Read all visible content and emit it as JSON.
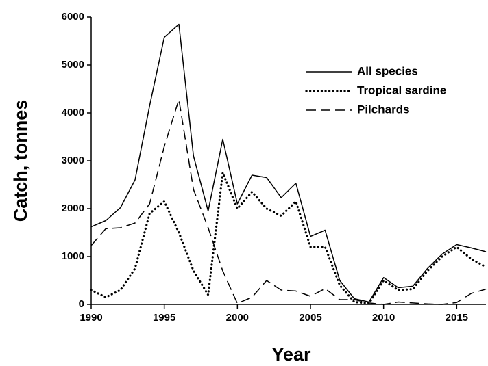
{
  "chart_data": {
    "type": "line",
    "xlabel": "Year",
    "ylabel": "Catch, tonnes",
    "x": [
      1990,
      1991,
      1992,
      1993,
      1994,
      1995,
      1996,
      1997,
      1998,
      1999,
      2000,
      2001,
      2002,
      2003,
      2004,
      2005,
      2006,
      2007,
      2008,
      2009,
      2010,
      2011,
      2012,
      2013,
      2014,
      2015,
      2016,
      2017
    ],
    "series": [
      {
        "name": "All species",
        "color": "#000000",
        "style": "solid",
        "values": [
          1620,
          1750,
          2020,
          2600,
          4150,
          5580,
          5850,
          3100,
          1950,
          3450,
          2100,
          2700,
          2650,
          2230,
          2530,
          1420,
          1550,
          500,
          120,
          50,
          560,
          350,
          380,
          750,
          1050,
          1250,
          1180,
          1100
        ]
      },
      {
        "name": "Tropical sardine",
        "color": "#000000",
        "style": "dotted",
        "values": [
          300,
          150,
          300,
          750,
          1900,
          2150,
          1500,
          700,
          200,
          2750,
          2000,
          2350,
          2000,
          1850,
          2150,
          1200,
          1200,
          400,
          50,
          20,
          500,
          300,
          320,
          700,
          1000,
          1200,
          950,
          780
        ]
      },
      {
        "name": "Pilchards",
        "color": "#000000",
        "style": "dashed",
        "values": [
          1230,
          1580,
          1600,
          1700,
          2100,
          3300,
          4280,
          2400,
          1600,
          700,
          20,
          150,
          500,
          300,
          280,
          170,
          330,
          100,
          100,
          30,
          0,
          50,
          30,
          10,
          0,
          40,
          230,
          320
        ]
      }
    ],
    "xlim": [
      1990,
      2017
    ],
    "xticks": [
      1990,
      1995,
      2000,
      2005,
      2010,
      2015
    ],
    "ylim": [
      0,
      6000
    ],
    "yticks": [
      0,
      1000,
      2000,
      3000,
      4000,
      5000,
      6000
    ],
    "grid": false,
    "legend": "upper right"
  }
}
